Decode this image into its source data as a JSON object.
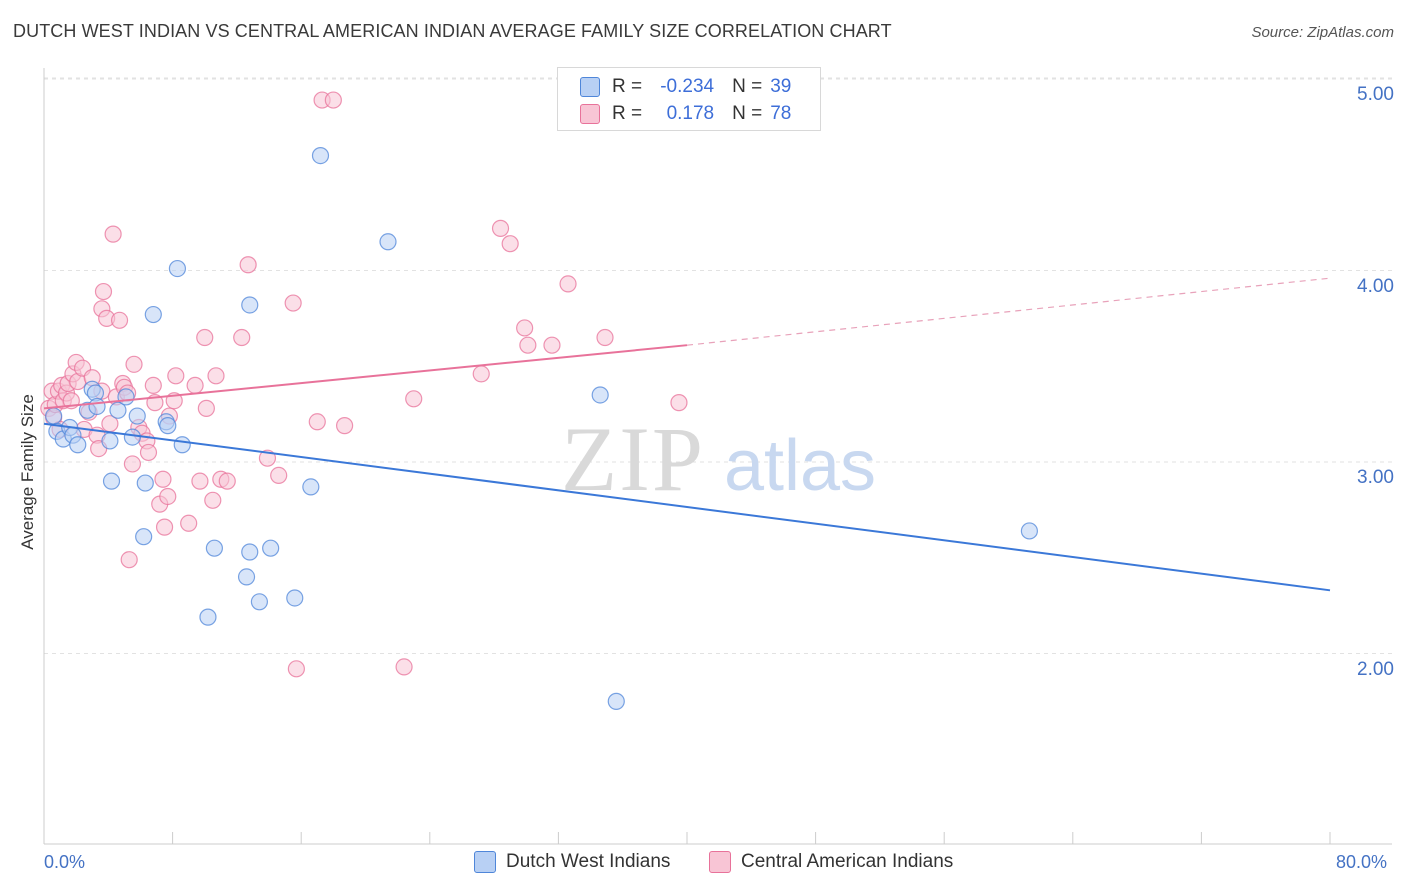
{
  "title": "DUTCH WEST INDIAN VS CENTRAL AMERICAN INDIAN AVERAGE FAMILY SIZE CORRELATION CHART",
  "source": "Source: ZipAtlas.com",
  "watermark": {
    "zip": "ZIP",
    "atlas": "atlas"
  },
  "colors": {
    "blue": "#4f86d9",
    "blue_fill": "#b8d0f4",
    "pink": "#e8729a",
    "pink_fill": "#f8c5d5",
    "axis_text": "#4472c4"
  },
  "legend": {
    "r_label": "R =",
    "n_label": "N =",
    "series": [
      {
        "r": "-0.234",
        "n": "39"
      },
      {
        "r": "0.178",
        "n": "78"
      }
    ]
  },
  "chart_data": {
    "type": "scatter",
    "title": "DUTCH WEST INDIAN VS CENTRAL AMERICAN INDIAN AVERAGE FAMILY SIZE CORRELATION CHART",
    "xlabel": "",
    "ylabel": "Average Family Size",
    "xlim": [
      0,
      80
    ],
    "ylim": [
      1.0,
      5.1
    ],
    "x_tick_labels": [
      "0.0%",
      "80.0%"
    ],
    "y_ticks": [
      2.0,
      3.0,
      4.0,
      5.0
    ],
    "y_tick_labels": [
      "2.00",
      "3.00",
      "4.00",
      "5.00"
    ],
    "grid": "horizontal dashed",
    "legend_position": "bottom-center",
    "series": [
      {
        "name": "Dutch West Indians",
        "color": "#4f86d9",
        "r": -0.234,
        "n": 39,
        "trend": {
          "x": [
            0,
            80
          ],
          "y": [
            3.2,
            2.33
          ],
          "dashed_from": null
        },
        "points": [
          [
            0.6,
            3.24
          ],
          [
            0.8,
            3.16
          ],
          [
            1.2,
            3.12
          ],
          [
            1.6,
            3.18
          ],
          [
            1.8,
            3.14
          ],
          [
            2.1,
            3.09
          ],
          [
            2.7,
            3.27
          ],
          [
            3.0,
            3.38
          ],
          [
            3.2,
            3.36
          ],
          [
            3.3,
            3.29
          ],
          [
            4.1,
            3.11
          ],
          [
            4.2,
            2.9
          ],
          [
            4.6,
            3.27
          ],
          [
            5.1,
            3.34
          ],
          [
            5.5,
            3.13
          ],
          [
            5.8,
            3.24
          ],
          [
            6.2,
            2.61
          ],
          [
            6.3,
            2.89
          ],
          [
            6.8,
            3.77
          ],
          [
            7.6,
            3.21
          ],
          [
            7.7,
            3.19
          ],
          [
            8.3,
            4.01
          ],
          [
            8.6,
            3.09
          ],
          [
            10.2,
            2.19
          ],
          [
            10.6,
            2.55
          ],
          [
            12.6,
            2.4
          ],
          [
            12.8,
            2.53
          ],
          [
            12.8,
            3.82
          ],
          [
            13.4,
            2.27
          ],
          [
            14.1,
            2.55
          ],
          [
            15.6,
            2.29
          ],
          [
            16.6,
            2.87
          ],
          [
            17.2,
            4.6
          ],
          [
            21.4,
            4.15
          ],
          [
            34.6,
            3.35
          ],
          [
            35.6,
            1.75
          ],
          [
            61.3,
            2.64
          ]
        ]
      },
      {
        "name": "Central American Indians",
        "color": "#e8729a",
        "r": 0.178,
        "n": 78,
        "trend": {
          "x": [
            0,
            40,
            80
          ],
          "y": [
            3.28,
            3.61,
            3.96
          ],
          "dashed_from": 40
        },
        "points": [
          [
            0.3,
            3.28
          ],
          [
            0.5,
            3.37
          ],
          [
            0.6,
            3.23
          ],
          [
            0.7,
            3.3
          ],
          [
            0.9,
            3.37
          ],
          [
            1.0,
            3.17
          ],
          [
            1.1,
            3.4
          ],
          [
            1.2,
            3.32
          ],
          [
            1.4,
            3.36
          ],
          [
            1.5,
            3.41
          ],
          [
            1.7,
            3.32
          ],
          [
            1.8,
            3.46
          ],
          [
            2.0,
            3.52
          ],
          [
            2.1,
            3.42
          ],
          [
            2.4,
            3.49
          ],
          [
            2.5,
            3.17
          ],
          [
            2.8,
            3.26
          ],
          [
            3.0,
            3.44
          ],
          [
            3.3,
            3.14
          ],
          [
            3.4,
            3.07
          ],
          [
            3.6,
            3.37
          ],
          [
            3.6,
            3.8
          ],
          [
            3.7,
            3.89
          ],
          [
            3.9,
            3.75
          ],
          [
            4.1,
            3.2
          ],
          [
            4.3,
            4.19
          ],
          [
            4.5,
            3.34
          ],
          [
            4.7,
            3.74
          ],
          [
            4.9,
            3.41
          ],
          [
            5.0,
            3.39
          ],
          [
            5.2,
            3.36
          ],
          [
            5.3,
            2.49
          ],
          [
            5.5,
            2.99
          ],
          [
            5.6,
            3.51
          ],
          [
            5.9,
            3.18
          ],
          [
            6.1,
            3.15
          ],
          [
            6.4,
            3.11
          ],
          [
            6.5,
            3.05
          ],
          [
            6.8,
            3.4
          ],
          [
            6.9,
            3.31
          ],
          [
            7.2,
            2.78
          ],
          [
            7.4,
            2.91
          ],
          [
            7.5,
            2.66
          ],
          [
            7.7,
            2.82
          ],
          [
            7.8,
            3.24
          ],
          [
            8.1,
            3.32
          ],
          [
            8.2,
            3.45
          ],
          [
            9.0,
            2.68
          ],
          [
            9.4,
            3.4
          ],
          [
            9.7,
            2.9
          ],
          [
            10.0,
            3.65
          ],
          [
            10.1,
            3.28
          ],
          [
            10.5,
            2.8
          ],
          [
            10.7,
            3.45
          ],
          [
            11.0,
            2.91
          ],
          [
            11.4,
            2.9
          ],
          [
            12.3,
            3.65
          ],
          [
            12.7,
            4.03
          ],
          [
            13.9,
            3.02
          ],
          [
            14.6,
            2.93
          ],
          [
            15.5,
            3.83
          ],
          [
            15.7,
            1.92
          ],
          [
            17.0,
            3.21
          ],
          [
            17.3,
            4.89
          ],
          [
            18.0,
            4.89
          ],
          [
            18.7,
            3.19
          ],
          [
            22.4,
            1.93
          ],
          [
            23.0,
            3.33
          ],
          [
            27.2,
            3.46
          ],
          [
            28.4,
            4.22
          ],
          [
            29.0,
            4.14
          ],
          [
            29.9,
            3.7
          ],
          [
            30.1,
            3.61
          ],
          [
            31.6,
            3.61
          ],
          [
            32.6,
            3.93
          ],
          [
            34.9,
            3.65
          ],
          [
            39.5,
            3.31
          ]
        ]
      }
    ]
  }
}
